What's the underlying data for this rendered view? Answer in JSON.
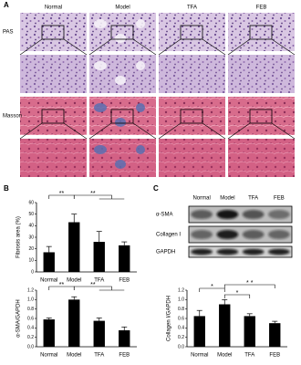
{
  "panel_labels": [
    "A",
    "B",
    "C"
  ],
  "panel_a": {
    "columns": [
      "Normal",
      "Model",
      "TFA",
      "FEB"
    ],
    "rows": [
      "PAS",
      "Masson"
    ]
  },
  "blot": {
    "columns": [
      "Normal",
      "Model",
      "TFA",
      "FEB"
    ],
    "rows": [
      "α-SMA",
      "Collagen I",
      "GAPDH"
    ]
  },
  "chart_data": [
    {
      "type": "bar",
      "ylabel": "Fibrosis area (%)",
      "categories": [
        "Normal",
        "Model",
        "TFA",
        "FEB"
      ],
      "values": [
        17,
        43,
        26,
        23
      ],
      "errors": [
        5,
        7,
        9,
        3
      ],
      "color": "#000000",
      "ylim": [
        0,
        60
      ],
      "yticks": [
        0,
        10,
        20,
        30,
        40,
        50,
        60
      ],
      "annotations": [
        "**",
        "**"
      ]
    },
    {
      "type": "bar",
      "ylabel": "α-SMA/GAPDH",
      "categories": [
        "Normal",
        "Model",
        "TFA",
        "FEB"
      ],
      "values": [
        0.58,
        1.0,
        0.55,
        0.35
      ],
      "errors": [
        0.03,
        0.06,
        0.06,
        0.07
      ],
      "color": "#000000",
      "ylim": [
        0,
        1.2
      ],
      "yticks": [
        {
          "value": 0,
          "label": "0.0"
        },
        0.2,
        0.4,
        0.6,
        0.8,
        {
          "value": 1,
          "label": "1.0"
        },
        1.2
      ],
      "annotations": [
        "**",
        "**"
      ]
    },
    {
      "type": "bar",
      "ylabel": "Collagen I/GAPDH",
      "categories": [
        "Normal",
        "Model",
        "TFA",
        "FEB"
      ],
      "values": [
        0.65,
        0.9,
        0.65,
        0.5
      ],
      "errors": [
        0.12,
        0.1,
        0.05,
        0.04
      ],
      "color": "#000000",
      "ylim": [
        0,
        1.2
      ],
      "yticks": [
        {
          "value": 0,
          "label": "0.0"
        },
        0.2,
        0.4,
        0.6,
        0.8,
        {
          "value": 1,
          "label": "1.0"
        },
        1.2
      ],
      "annotations": [
        "*",
        "*",
        "* *"
      ]
    }
  ]
}
